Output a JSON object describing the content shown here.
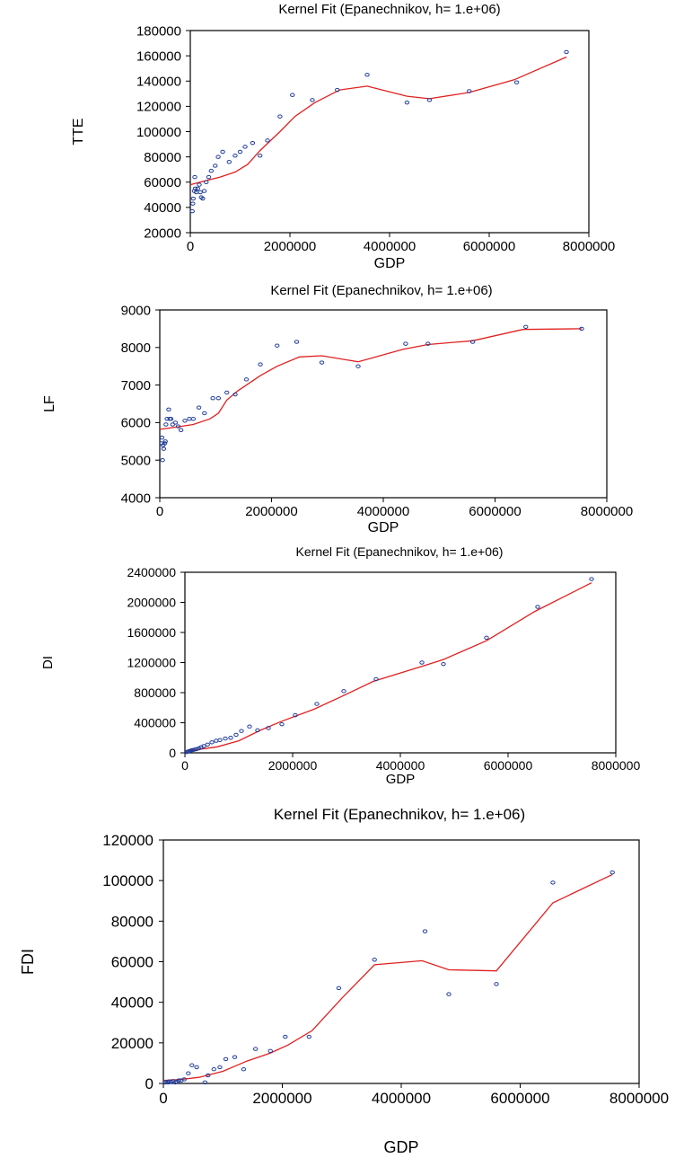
{
  "chart_data": [
    {
      "type": "scatter",
      "title": "Kernel Fit (Epanechnikov, h= 1.e+06)",
      "xlabel": "GDP",
      "ylabel": "TTE",
      "xlim": [
        0,
        8000000
      ],
      "ylim": [
        20000,
        180000
      ],
      "xticks": [
        0,
        2000000,
        4000000,
        6000000,
        8000000
      ],
      "yticks": [
        20000,
        40000,
        60000,
        80000,
        100000,
        120000,
        140000,
        160000,
        180000
      ],
      "xtick_labels": [
        "0",
        "2000000",
        "4000000",
        "6000000",
        "8000000"
      ],
      "ytick_labels": [
        "20000",
        "40000",
        "60000",
        "80000",
        "100000",
        "120000",
        "140000",
        "160000",
        "180000"
      ],
      "points": [
        [
          40000,
          37000
        ],
        [
          50000,
          43000
        ],
        [
          60000,
          47000
        ],
        [
          80000,
          53000
        ],
        [
          90000,
          64000
        ],
        [
          100000,
          55000
        ],
        [
          120000,
          52000
        ],
        [
          150000,
          55000
        ],
        [
          180000,
          58000
        ],
        [
          200000,
          52000
        ],
        [
          220000,
          48000
        ],
        [
          250000,
          47000
        ],
        [
          280000,
          53000
        ],
        [
          320000,
          60000
        ],
        [
          370000,
          64000
        ],
        [
          420000,
          69000
        ],
        [
          500000,
          73000
        ],
        [
          560000,
          80000
        ],
        [
          650000,
          84000
        ],
        [
          780000,
          76000
        ],
        [
          900000,
          81000
        ],
        [
          1000000,
          84000
        ],
        [
          1100000,
          88000
        ],
        [
          1250000,
          91000
        ],
        [
          1400000,
          81000
        ],
        [
          1550000,
          93000
        ],
        [
          1800000,
          112000
        ],
        [
          2050000,
          129000
        ],
        [
          2450000,
          125000
        ],
        [
          2950000,
          133000
        ],
        [
          3550000,
          145000
        ],
        [
          4350000,
          123000
        ],
        [
          4800000,
          125000
        ],
        [
          5600000,
          132000
        ],
        [
          6550000,
          139000
        ],
        [
          7550000,
          163000
        ]
      ],
      "fit": [
        [
          0,
          58000
        ],
        [
          300000,
          61000
        ],
        [
          600000,
          64000
        ],
        [
          900000,
          68000
        ],
        [
          1150000,
          74000
        ],
        [
          1400000,
          85000
        ],
        [
          1800000,
          100000
        ],
        [
          2100000,
          112000
        ],
        [
          2500000,
          123000
        ],
        [
          3000000,
          133000
        ],
        [
          3550000,
          136000
        ],
        [
          4350000,
          128000
        ],
        [
          4800000,
          126000
        ],
        [
          5600000,
          131000
        ],
        [
          6500000,
          141000
        ],
        [
          7550000,
          159000
        ]
      ],
      "point_color": "#1f3c99",
      "line_color": "#e0201f"
    },
    {
      "type": "scatter",
      "title": "Kernel Fit (Epanechnikov, h= 1.e+06)",
      "xlabel": "GDP",
      "ylabel": "LF",
      "xlim": [
        0,
        8000000
      ],
      "ylim": [
        4000,
        9000
      ],
      "xticks": [
        0,
        2000000,
        4000000,
        6000000,
        8000000
      ],
      "yticks": [
        4000,
        5000,
        6000,
        7000,
        8000,
        9000
      ],
      "xtick_labels": [
        "0",
        "2000000",
        "4000000",
        "6000000",
        "8000000"
      ],
      "ytick_labels": [
        "4000",
        "5000",
        "6000",
        "7000",
        "8000",
        "9000"
      ],
      "points": [
        [
          30000,
          5450
        ],
        [
          40000,
          5600
        ],
        [
          50000,
          5000
        ],
        [
          60000,
          5400
        ],
        [
          70000,
          5300
        ],
        [
          90000,
          5450
        ],
        [
          100000,
          5500
        ],
        [
          110000,
          5950
        ],
        [
          130000,
          6100
        ],
        [
          160000,
          6350
        ],
        [
          180000,
          6100
        ],
        [
          200000,
          6100
        ],
        [
          230000,
          5950
        ],
        [
          280000,
          6000
        ],
        [
          330000,
          5900
        ],
        [
          380000,
          5800
        ],
        [
          450000,
          6050
        ],
        [
          530000,
          6100
        ],
        [
          600000,
          6100
        ],
        [
          700000,
          6400
        ],
        [
          800000,
          6250
        ],
        [
          950000,
          6650
        ],
        [
          1050000,
          6650
        ],
        [
          1200000,
          6800
        ],
        [
          1350000,
          6750
        ],
        [
          1550000,
          7150
        ],
        [
          1800000,
          7550
        ],
        [
          2100000,
          8050
        ],
        [
          2450000,
          8150
        ],
        [
          2900000,
          7600
        ],
        [
          3550000,
          7500
        ],
        [
          4400000,
          8100
        ],
        [
          4800000,
          8100
        ],
        [
          5600000,
          8150
        ],
        [
          6550000,
          8550
        ],
        [
          7550000,
          8500
        ]
      ],
      "fit": [
        [
          0,
          5820
        ],
        [
          300000,
          5880
        ],
        [
          600000,
          5950
        ],
        [
          900000,
          6100
        ],
        [
          1050000,
          6250
        ],
        [
          1200000,
          6600
        ],
        [
          1400000,
          6850
        ],
        [
          1800000,
          7250
        ],
        [
          2100000,
          7500
        ],
        [
          2500000,
          7750
        ],
        [
          2900000,
          7780
        ],
        [
          3550000,
          7620
        ],
        [
          4350000,
          7950
        ],
        [
          4800000,
          8080
        ],
        [
          5600000,
          8180
        ],
        [
          6500000,
          8480
        ],
        [
          7550000,
          8500
        ]
      ],
      "point_color": "#1f3c99",
      "line_color": "#e0201f"
    },
    {
      "type": "scatter",
      "title": "Kernel Fit (Epanechnikov, h= 1.e+06)",
      "xlabel": "GDP",
      "ylabel": "DI",
      "xlim": [
        0,
        8000000
      ],
      "ylim": [
        0,
        2400000
      ],
      "xticks": [
        0,
        2000000,
        4000000,
        6000000,
        8000000
      ],
      "yticks": [
        0,
        400000,
        800000,
        1200000,
        1600000,
        2000000,
        2400000
      ],
      "xtick_labels": [
        "0",
        "2000000",
        "4000000",
        "6000000",
        "8000000"
      ],
      "ytick_labels": [
        "0",
        "400000",
        "800000",
        "1200000",
        "1600000",
        "2000000",
        "2400000"
      ],
      "points": [
        [
          30000,
          10000
        ],
        [
          50000,
          15000
        ],
        [
          70000,
          20000
        ],
        [
          90000,
          25000
        ],
        [
          110000,
          30000
        ],
        [
          130000,
          35000
        ],
        [
          160000,
          40000
        ],
        [
          190000,
          45000
        ],
        [
          220000,
          50000
        ],
        [
          260000,
          60000
        ],
        [
          300000,
          75000
        ],
        [
          350000,
          90000
        ],
        [
          420000,
          110000
        ],
        [
          500000,
          140000
        ],
        [
          580000,
          160000
        ],
        [
          650000,
          170000
        ],
        [
          750000,
          190000
        ],
        [
          850000,
          200000
        ],
        [
          950000,
          240000
        ],
        [
          1050000,
          290000
        ],
        [
          1200000,
          350000
        ],
        [
          1350000,
          300000
        ],
        [
          1550000,
          330000
        ],
        [
          1800000,
          380000
        ],
        [
          2050000,
          500000
        ],
        [
          2450000,
          650000
        ],
        [
          2950000,
          820000
        ],
        [
          3550000,
          980000
        ],
        [
          4400000,
          1200000
        ],
        [
          4800000,
          1180000
        ],
        [
          5600000,
          1530000
        ],
        [
          6550000,
          1940000
        ],
        [
          7550000,
          2310000
        ]
      ],
      "fit": [
        [
          0,
          20000
        ],
        [
          300000,
          50000
        ],
        [
          600000,
          80000
        ],
        [
          1000000,
          160000
        ],
        [
          1400000,
          300000
        ],
        [
          1800000,
          420000
        ],
        [
          2400000,
          580000
        ],
        [
          3000000,
          780000
        ],
        [
          3500000,
          950000
        ],
        [
          4400000,
          1150000
        ],
        [
          4800000,
          1240000
        ],
        [
          5600000,
          1490000
        ],
        [
          6500000,
          1880000
        ],
        [
          7550000,
          2260000
        ]
      ],
      "point_color": "#1f3c99",
      "line_color": "#e0201f"
    },
    {
      "type": "scatter",
      "title": "Kernel Fit (Epanechnikov, h= 1.e+06)",
      "xlabel": "GDP",
      "ylabel": "FDI",
      "xlim": [
        0,
        8000000
      ],
      "ylim": [
        0,
        120000
      ],
      "xticks": [
        0,
        2000000,
        4000000,
        6000000,
        8000000
      ],
      "yticks": [
        0,
        20000,
        40000,
        60000,
        80000,
        100000,
        120000
      ],
      "xtick_labels": [
        "0",
        "2000000",
        "4000000",
        "6000000",
        "8000000"
      ],
      "ytick_labels": [
        "0",
        "20000",
        "40000",
        "60000",
        "80000",
        "100000",
        "120000"
      ],
      "points": [
        [
          30000,
          500
        ],
        [
          60000,
          800
        ],
        [
          80000,
          500
        ],
        [
          100000,
          1000
        ],
        [
          130000,
          800
        ],
        [
          160000,
          1200
        ],
        [
          200000,
          500
        ],
        [
          230000,
          800
        ],
        [
          260000,
          1500
        ],
        [
          300000,
          1500
        ],
        [
          350000,
          2000
        ],
        [
          420000,
          5000
        ],
        [
          480000,
          9000
        ],
        [
          560000,
          8000
        ],
        [
          700000,
          500
        ],
        [
          750000,
          4000
        ],
        [
          850000,
          7000
        ],
        [
          950000,
          8000
        ],
        [
          1050000,
          12000
        ],
        [
          1200000,
          13000
        ],
        [
          1350000,
          7000
        ],
        [
          1550000,
          17000
        ],
        [
          1800000,
          16000
        ],
        [
          2050000,
          23000
        ],
        [
          2450000,
          23000
        ],
        [
          2950000,
          47000
        ],
        [
          3550000,
          61000
        ],
        [
          4400000,
          75000
        ],
        [
          4800000,
          44000
        ],
        [
          5600000,
          49000
        ],
        [
          6550000,
          99000
        ],
        [
          7550000,
          104000
        ]
      ],
      "fit": [
        [
          0,
          1500
        ],
        [
          300000,
          2000
        ],
        [
          600000,
          3000
        ],
        [
          1000000,
          6000
        ],
        [
          1400000,
          11000
        ],
        [
          1800000,
          15000
        ],
        [
          2100000,
          19000
        ],
        [
          2500000,
          26000
        ],
        [
          3000000,
          42000
        ],
        [
          3550000,
          58500
        ],
        [
          4350000,
          60500
        ],
        [
          4800000,
          56000
        ],
        [
          5600000,
          55500
        ],
        [
          6550000,
          89000
        ],
        [
          7550000,
          103000
        ]
      ],
      "point_color": "#1f3c99",
      "line_color": "#e0201f"
    }
  ]
}
